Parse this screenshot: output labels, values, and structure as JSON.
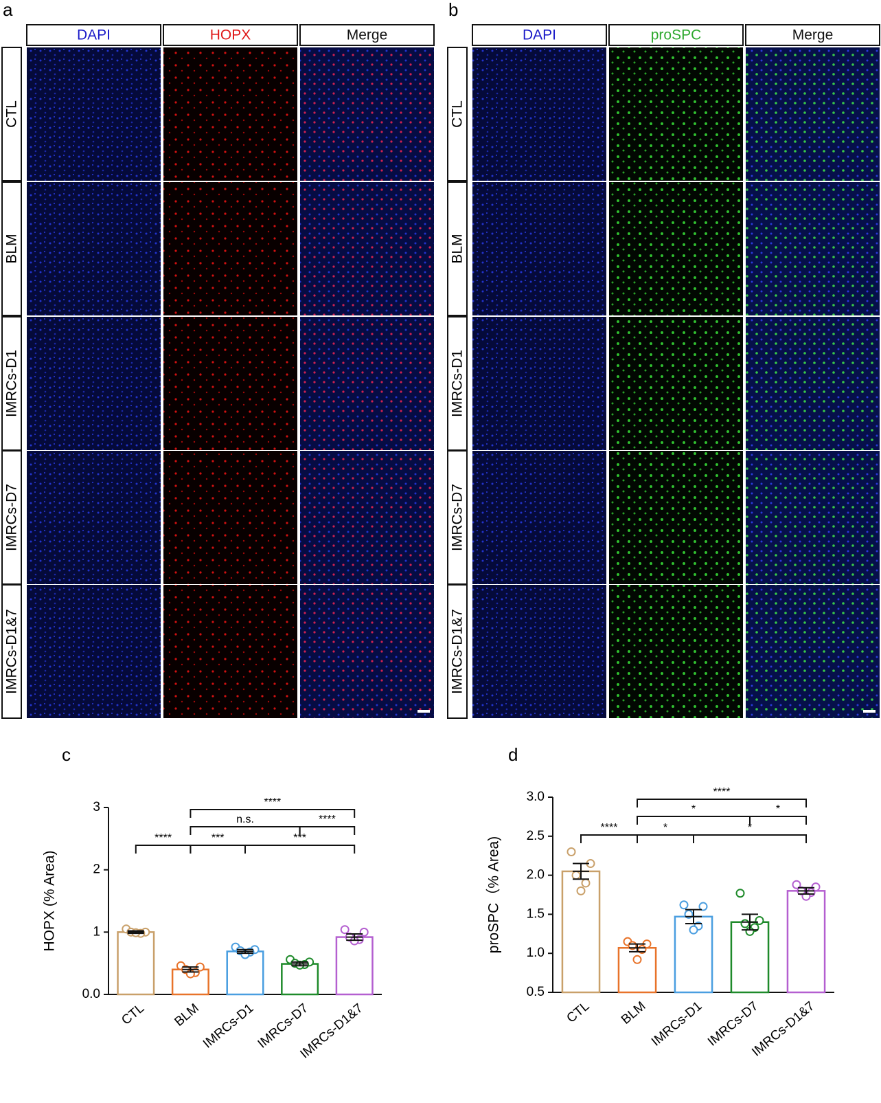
{
  "panels": [
    {
      "label": "a",
      "columns": [
        "DAPI",
        "HOPX",
        "Merge"
      ],
      "rows": [
        "CTL",
        "BLM",
        "IMRCs-D1",
        "IMRCs-D7",
        "IMRCs-D1&7"
      ]
    },
    {
      "label": "b",
      "columns": [
        "DAPI",
        "proSPC",
        "Merge"
      ],
      "rows": [
        "CTL",
        "BLM",
        "IMRCs-D1",
        "IMRCs-D7",
        "IMRCs-D1&7"
      ]
    }
  ],
  "chart_data": [
    {
      "type": "bar",
      "panel_label": "c",
      "y_label": "HOPX (% Area)",
      "categories": [
        "CTL",
        "BLM",
        "IMRCs-D1",
        "IMRCs-D7",
        "IMRCs-D1&7"
      ],
      "colors": [
        "#c9a06a",
        "#e8732a",
        "#4a9ee0",
        "#1e8a2a",
        "#b45fd0"
      ],
      "values": [
        1.0,
        0.4,
        0.69,
        0.49,
        0.92
      ],
      "errors": [
        0.02,
        0.04,
        0.03,
        0.03,
        0.05
      ],
      "points": [
        [
          1.05,
          1.0,
          1.0,
          0.98,
          0.99
        ],
        [
          0.46,
          0.44,
          0.4,
          0.35,
          0.33
        ],
        [
          0.76,
          0.72,
          0.7,
          0.68,
          0.64
        ],
        [
          0.56,
          0.52,
          0.5,
          0.48,
          0.47
        ],
        [
          1.04,
          1.0,
          0.92,
          0.88,
          0.86
        ]
      ],
      "ylim": [
        0,
        3
      ],
      "yticks": [
        {
          "value": 0,
          "label": "0.0"
        },
        1,
        2,
        3
      ],
      "comparisons": [
        {
          "from": 0,
          "to": 1,
          "label": "****"
        },
        {
          "from": 1,
          "to": 2,
          "label": "***"
        },
        {
          "from": 2,
          "to": 4,
          "label": "***"
        },
        {
          "from": 1,
          "to": 3,
          "label": "n.s."
        },
        {
          "from": 3,
          "to": 4,
          "label": "****"
        },
        {
          "from": 1,
          "to": 4,
          "label": "****"
        }
      ]
    },
    {
      "type": "bar",
      "panel_label": "d",
      "y_label": "proSPC（% Area)",
      "categories": [
        "CTL",
        "BLM",
        "IMRCs-D1",
        "IMRCs-D7",
        "IMRCs-D1&7"
      ],
      "colors": [
        "#c9a06a",
        "#e8732a",
        "#4a9ee0",
        "#1e8a2a",
        "#b45fd0"
      ],
      "values": [
        2.05,
        1.07,
        1.47,
        1.4,
        1.8
      ],
      "errors": [
        0.1,
        0.05,
        0.09,
        0.1,
        0.04
      ],
      "points": [
        [
          2.3,
          2.15,
          2.0,
          1.9,
          1.8
        ],
        [
          1.15,
          1.12,
          1.1,
          1.05,
          0.92
        ],
        [
          1.62,
          1.6,
          1.5,
          1.35,
          1.3
        ],
        [
          1.77,
          1.42,
          1.38,
          1.33,
          1.28
        ],
        [
          1.88,
          1.85,
          1.8,
          1.78,
          1.73
        ]
      ],
      "ylim": [
        0.5,
        3.0
      ],
      "yticks": [
        0.5,
        {
          "value": 1,
          "label": "1.0"
        },
        1.5,
        {
          "value": 2,
          "label": "2.0"
        },
        2.5,
        {
          "value": 3,
          "label": "3.0"
        }
      ],
      "comparisons": [
        {
          "from": 0,
          "to": 1,
          "label": "****"
        },
        {
          "from": 1,
          "to": 2,
          "label": "*"
        },
        {
          "from": 2,
          "to": 4,
          "label": "*"
        },
        {
          "from": 1,
          "to": 3,
          "label": "*"
        },
        {
          "from": 3,
          "to": 4,
          "label": "*"
        },
        {
          "from": 1,
          "to": 4,
          "label": "****"
        }
      ]
    }
  ]
}
